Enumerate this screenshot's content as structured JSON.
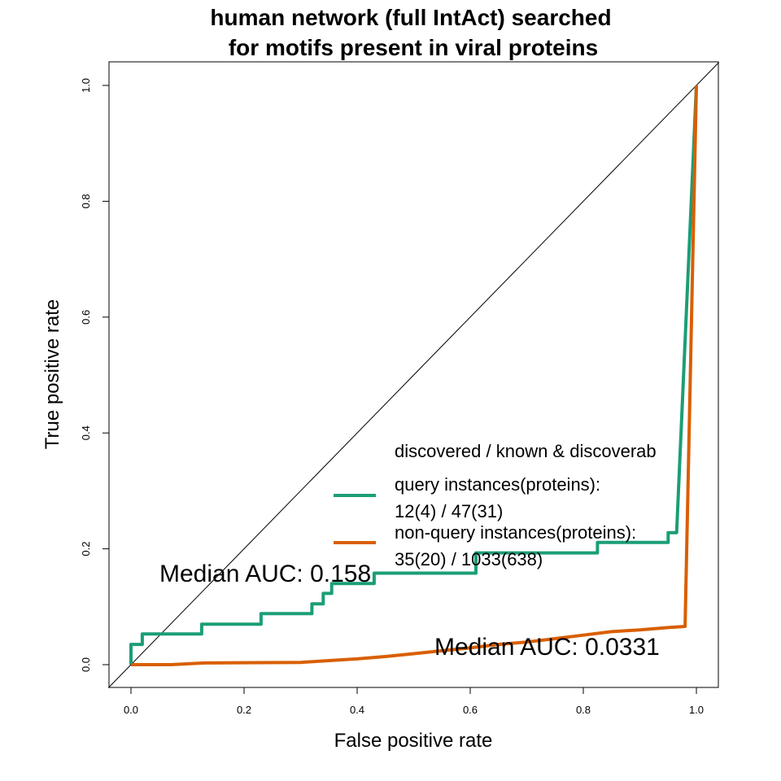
{
  "chart_data": {
    "type": "line",
    "title_line1": "human network (full IntAct) searched",
    "title_line2": "for motifs present in viral proteins",
    "xlabel": "False positive rate",
    "ylabel": "True positive rate",
    "xlim": [
      0,
      1
    ],
    "ylim": [
      0,
      1
    ],
    "x_ticks": [
      "0.0",
      "0.2",
      "0.4",
      "0.6",
      "0.8",
      "1.0"
    ],
    "y_ticks": [
      "0.0",
      "0.2",
      "0.4",
      "0.6",
      "0.8",
      "1.0"
    ],
    "grid": false,
    "diagonal_reference": true,
    "legend": {
      "header": "discovered / known & discoverab",
      "placement": "center-right",
      "entries": [
        {
          "line1": "query instances(proteins):",
          "line2": "12(4) / 47(31)",
          "color": "#1b9e77"
        },
        {
          "line1": "non-query instances(proteins):",
          "line2": "35(20) / 1033(638)",
          "color": "#d95f02"
        }
      ]
    },
    "annotations": [
      {
        "text": "Median AUC: 0.158",
        "x": 0.05,
        "y": 0.155
      },
      {
        "text": "Median AUC: 0.0331",
        "x": 0.54,
        "y": 0.03
      }
    ],
    "series": [
      {
        "color": "#1b9e77",
        "x": [
          0,
          0,
          0.02,
          0.02,
          0.125,
          0.125,
          0.23,
          0.23,
          0.32,
          0.32,
          0.34,
          0.34,
          0.355,
          0.355,
          0.43,
          0.43,
          0.61,
          0.61,
          0.825,
          0.825,
          0.95,
          0.95,
          0.965,
          1.0
        ],
        "y": [
          0,
          0.035,
          0.035,
          0.053,
          0.053,
          0.07,
          0.07,
          0.088,
          0.088,
          0.105,
          0.105,
          0.123,
          0.123,
          0.14,
          0.14,
          0.158,
          0.158,
          0.193,
          0.193,
          0.211,
          0.211,
          0.228,
          0.228,
          1.0
        ]
      },
      {
        "color": "#d95f02",
        "x": [
          0,
          0.07,
          0.13,
          0.3,
          0.35,
          0.4,
          0.45,
          0.5,
          0.55,
          0.6,
          0.65,
          0.7,
          0.75,
          0.8,
          0.85,
          0.9,
          0.95,
          0.98,
          1.0
        ],
        "y": [
          0,
          0,
          0.003,
          0.004,
          0.007,
          0.01,
          0.014,
          0.019,
          0.024,
          0.029,
          0.035,
          0.039,
          0.045,
          0.051,
          0.057,
          0.06,
          0.064,
          0.066,
          1.0
        ]
      }
    ]
  }
}
